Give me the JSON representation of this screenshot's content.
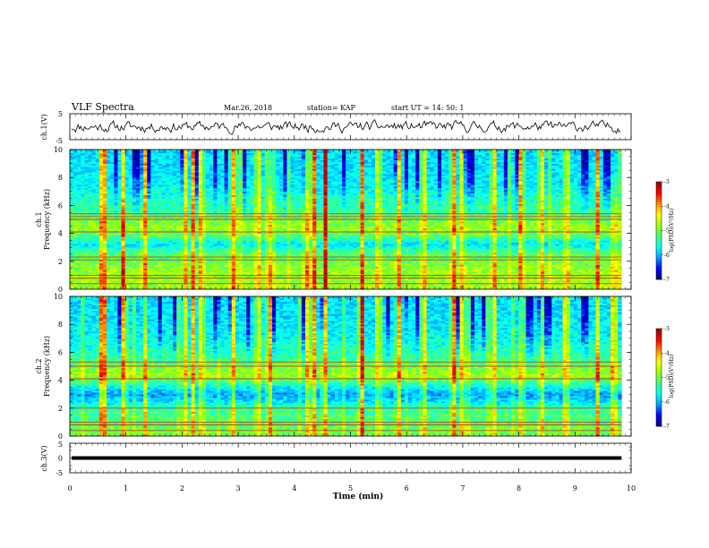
{
  "header": {
    "title": "VLF Spectra",
    "date": "Mar.26, 2018",
    "station": "station= KAP",
    "start": "start UT =   14: 50: 1"
  },
  "chart_data": [
    {
      "type": "line",
      "name": "ch1-waveform",
      "ylabel": "ch.1(V)",
      "ylim": [
        -5,
        5
      ],
      "yticks": [
        "5",
        "-5"
      ],
      "xlim": [
        0,
        10
      ],
      "samples": 420,
      "seed": 11,
      "amplitude_v": 1.4,
      "series_color": "#000000"
    },
    {
      "type": "heatmap",
      "name": "ch1-spectrogram",
      "ylabel_top": "ch.1",
      "ylabel": "Frequency (kHz)",
      "xlim": [
        0,
        9.83
      ],
      "ylim": [
        0,
        10
      ],
      "yticks": [
        "0",
        "2",
        "4",
        "6",
        "8",
        "10"
      ],
      "cells_x": 150,
      "cells_y": 80,
      "seed": 3,
      "cmap_label": "log(PSD)(V²/Hz)",
      "cmap_ticks": [
        "-3",
        "-4",
        "-5",
        "-6",
        "-7"
      ],
      "cmap_range": [
        -7,
        -3
      ],
      "band_profile": [
        {
          "f": 0.5,
          "v": 0.55
        },
        {
          "f": 1.2,
          "v": 0.55
        },
        {
          "f": 2.0,
          "v": 0.5
        },
        {
          "f": 2.6,
          "v": 0.45
        },
        {
          "f": 3.2,
          "v": 0.3
        },
        {
          "f": 3.8,
          "v": 0.45
        },
        {
          "f": 4.3,
          "v": 0.55
        },
        {
          "f": 5.0,
          "v": 0.5
        },
        {
          "f": 5.6,
          "v": 0.42
        },
        {
          "f": 6.5,
          "v": 0.38
        },
        {
          "f": 7.5,
          "v": 0.32
        },
        {
          "f": 8.5,
          "v": 0.3
        },
        {
          "f": 10.0,
          "v": 0.3
        }
      ],
      "lines_khz": [
        0.4,
        0.8,
        1.0,
        2.1,
        2.3,
        4.1,
        5.0,
        5.2,
        5.4
      ],
      "bursts_min": [
        0.55,
        0.62,
        0.95,
        1.35,
        2.05,
        2.2,
        2.35,
        2.9,
        3.35,
        3.55,
        4.25,
        4.35,
        4.55,
        5.2,
        5.5,
        5.85,
        6.3,
        6.85,
        7.0,
        7.55,
        8.05,
        8.4,
        8.85,
        9.4,
        9.7
      ]
    },
    {
      "type": "heatmap",
      "name": "ch2-spectrogram",
      "ylabel_top": "ch.2",
      "ylabel": "Frequency (kHz)",
      "xlim": [
        0,
        9.83
      ],
      "ylim": [
        0,
        10
      ],
      "yticks": [
        "0",
        "2",
        "4",
        "6",
        "8",
        "10"
      ],
      "cells_x": 150,
      "cells_y": 80,
      "seed": 7,
      "cmap_label": "log(PSD)(V²/Hz)",
      "cmap_ticks": [
        "-3",
        "-4",
        "-5",
        "-6",
        "-7"
      ],
      "cmap_range": [
        -7,
        -3
      ],
      "band_profile": [
        {
          "f": 0.5,
          "v": 0.5
        },
        {
          "f": 1.2,
          "v": 0.45
        },
        {
          "f": 2.0,
          "v": 0.42
        },
        {
          "f": 2.5,
          "v": 0.3
        },
        {
          "f": 3.0,
          "v": 0.22
        },
        {
          "f": 3.6,
          "v": 0.35
        },
        {
          "f": 4.3,
          "v": 0.55
        },
        {
          "f": 5.0,
          "v": 0.5
        },
        {
          "f": 5.6,
          "v": 0.42
        },
        {
          "f": 6.5,
          "v": 0.36
        },
        {
          "f": 7.5,
          "v": 0.32
        },
        {
          "f": 8.5,
          "v": 0.3
        },
        {
          "f": 10.0,
          "v": 0.3
        }
      ],
      "lines_khz": [
        0.4,
        0.8,
        1.0,
        2.0,
        4.1,
        5.0,
        5.3
      ],
      "bursts_min": [
        0.55,
        0.62,
        0.95,
        1.35,
        2.05,
        2.2,
        2.35,
        2.9,
        3.35,
        3.55,
        4.25,
        4.35,
        4.55,
        5.2,
        5.5,
        5.85,
        6.3,
        6.85,
        7.0,
        7.55,
        8.05,
        8.4,
        8.85,
        9.4,
        9.7
      ]
    },
    {
      "type": "line",
      "name": "ch3-waveform",
      "ylabel": "ch.3(V)",
      "ylim": [
        -5,
        5
      ],
      "yticks": [
        "5",
        "0",
        "-5"
      ],
      "xlim": [
        0,
        10
      ],
      "constant_v": 0,
      "series_color": "#000000"
    }
  ],
  "xaxis": {
    "label": "Time (min)",
    "ticks": [
      "0",
      "1",
      "2",
      "3",
      "4",
      "5",
      "6",
      "7",
      "8",
      "9",
      "10"
    ]
  },
  "colormap_stops": [
    "#000080",
    "#0000ff",
    "#00a0ff",
    "#00ffff",
    "#40ff80",
    "#a0ff00",
    "#ffff00",
    "#ff9000",
    "#ff0000",
    "#a00000"
  ]
}
